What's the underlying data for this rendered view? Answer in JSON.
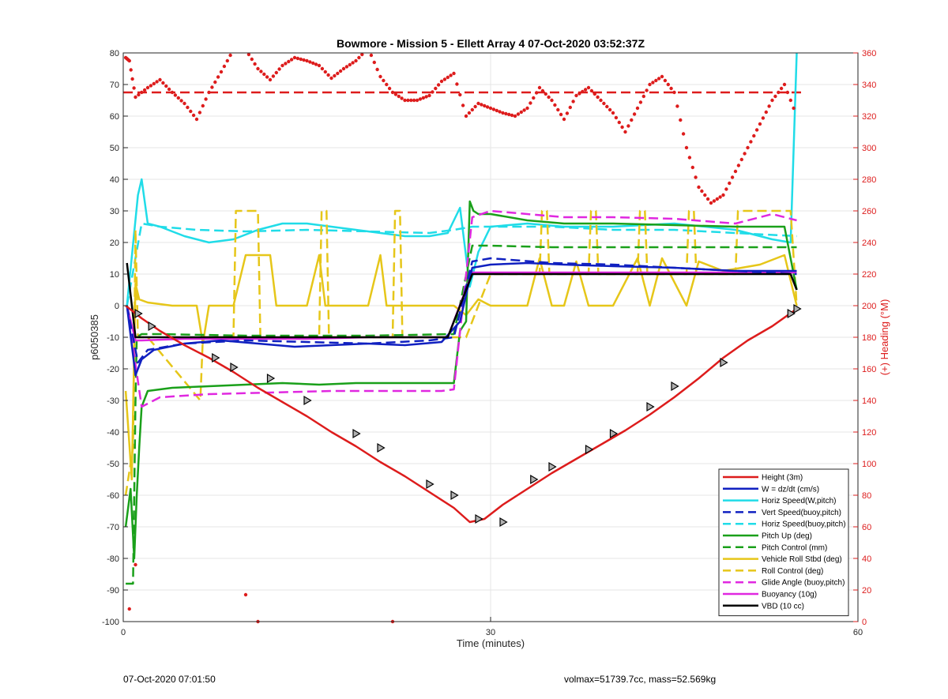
{
  "chart_data": {
    "type": "line",
    "title": "Bowmore - Mission 5 - Ellett Array 4 07-Oct-2020 03:52:37Z",
    "xlabel": "Time (minutes)",
    "ylabel_left": "p6050385",
    "ylabel_right": "(+) Heading (°M)",
    "xlim": [
      0,
      60
    ],
    "ylim_left": [
      -100,
      80
    ],
    "ylim_right": [
      0,
      360
    ],
    "x_ticks": [
      0,
      30,
      60
    ],
    "y_ticks_left": [
      80,
      70,
      60,
      50,
      40,
      30,
      20,
      10,
      0,
      -10,
      -20,
      -30,
      -40,
      -50,
      -60,
      -70,
      -80,
      -90,
      -100
    ],
    "y_ticks_right": [
      360,
      340,
      320,
      300,
      280,
      260,
      240,
      220,
      200,
      180,
      160,
      140,
      120,
      100,
      80,
      60,
      40,
      20,
      0
    ],
    "grid": true,
    "legend_position": "bottom-right",
    "series": [
      {
        "name": "Height (3m)",
        "color": "#dd1c1c",
        "style": "solid",
        "axis": "left",
        "x": [
          0.2,
          1.5,
          3,
          5,
          7,
          9,
          11,
          13,
          15,
          17,
          19,
          21,
          23,
          25,
          27,
          28.3,
          29.5,
          31,
          33,
          35,
          37,
          39,
          41,
          43,
          45,
          47,
          49,
          51,
          53,
          55
        ],
        "y": [
          0,
          -4,
          -8,
          -12.5,
          -16.5,
          -21,
          -26,
          -30.5,
          -35,
          -40,
          -44.5,
          -49.5,
          -54,
          -59,
          -64,
          -68.5,
          -67.5,
          -63,
          -58,
          -53,
          -48.5,
          -44,
          -39.5,
          -34.5,
          -29,
          -23,
          -16.5,
          -11,
          -6.5,
          -1
        ]
      },
      {
        "name": "W = dz/dt (cm/s)",
        "color": "#1020c0",
        "style": "solid",
        "axis": "left",
        "x": [
          0.3,
          1.0,
          1.5,
          2.5,
          5,
          8,
          11,
          14,
          17,
          20,
          23,
          26,
          27.5,
          28.5,
          30,
          33,
          36,
          40,
          45,
          50,
          55
        ],
        "y": [
          0,
          -22,
          -17,
          -14,
          -12,
          -11,
          -12,
          -13,
          -12.5,
          -12,
          -12.5,
          -11.5,
          -5,
          12,
          13,
          13.5,
          13,
          12.5,
          12,
          11,
          11
        ]
      },
      {
        "name": "Horiz Speed(W,pitch)",
        "color": "#20dce8",
        "style": "solid",
        "axis": "left",
        "x": [
          0.3,
          1.2,
          1.5,
          2,
          3,
          5,
          7,
          9,
          11,
          13,
          15,
          17,
          19,
          21,
          23,
          25,
          26.5,
          27.5,
          28.3,
          29,
          30,
          33,
          36,
          40,
          45,
          50,
          53,
          54.5,
          55
        ],
        "y": [
          0,
          35,
          40,
          26,
          25,
          22,
          20,
          21,
          24,
          26,
          26,
          25,
          24,
          23,
          22,
          22,
          23,
          31,
          6,
          17,
          25,
          26,
          25,
          25,
          26,
          24,
          21,
          20,
          80
        ]
      },
      {
        "name": "Vert Speed(buoy,pitch)",
        "color": "#1020c0",
        "style": "dashed",
        "axis": "left",
        "x": [
          0.3,
          1.2,
          2,
          5,
          10,
          15,
          20,
          25,
          27,
          28.5,
          30,
          35,
          40,
          45,
          50,
          55
        ],
        "y": [
          0,
          -18,
          -14,
          -12,
          -11,
          -11.5,
          -12,
          -11,
          -10,
          14,
          15,
          13.5,
          13,
          12,
          11,
          10
        ]
      },
      {
        "name": "Horiz Speed(buoy,pitch)",
        "color": "#20dce8",
        "style": "dashed",
        "axis": "left",
        "x": [
          0.3,
          1.5,
          3,
          6,
          10,
          15,
          20,
          25,
          27,
          28.5,
          30,
          35,
          40,
          45,
          50,
          55
        ],
        "y": [
          0,
          26,
          25,
          24,
          23.5,
          24,
          23.5,
          23,
          24,
          25,
          25,
          25,
          24,
          24,
          23,
          22
        ]
      },
      {
        "name": "Pitch Up (deg)",
        "color": "#1aa01a",
        "style": "solid",
        "axis": "left",
        "x": [
          0.2,
          0.6,
          0.9,
          1.1,
          1.3,
          1.5,
          2,
          4,
          7,
          10,
          13,
          16,
          19,
          22,
          25,
          27,
          27.5,
          28,
          28.3,
          28.6,
          29,
          30,
          33,
          36,
          40,
          45,
          50,
          54,
          55
        ],
        "y": [
          -70,
          -58,
          -80,
          -60,
          -45,
          -32,
          -27,
          -26,
          -25.5,
          -25,
          -24.5,
          -25,
          -24.5,
          -24.5,
          -24.5,
          -24.5,
          -8,
          -5,
          33,
          30,
          29,
          29,
          27,
          26,
          26,
          25.5,
          25,
          25,
          5
        ]
      },
      {
        "name": "Pitch Control (mm)",
        "color": "#1aa01a",
        "style": "dashed",
        "axis": "left",
        "x": [
          0.2,
          0.8,
          1.0,
          1.1,
          1.5,
          3,
          10,
          20,
          27,
          28.5,
          30,
          35,
          40,
          45,
          50,
          55
        ],
        "y": [
          -88,
          -88,
          -30,
          -10,
          -9,
          -9,
          -9.5,
          -9.5,
          -9,
          19,
          19,
          18.5,
          18.5,
          18.5,
          18.5,
          18.5
        ]
      },
      {
        "name": "Vehicle Roll Stbd (deg)",
        "color": "#e6c619",
        "style": "solid",
        "axis": "left",
        "x": [
          0.2,
          0.7,
          1.0,
          1.3,
          2,
          4,
          6,
          6.5,
          7,
          9,
          10,
          11,
          12,
          12.5,
          15,
          16,
          16.5,
          20,
          21,
          21.5,
          25,
          27,
          28,
          29,
          30,
          33,
          34,
          35,
          36,
          37,
          38,
          40,
          42,
          43,
          44,
          46,
          47,
          49,
          52,
          54,
          55
        ],
        "y": [
          -27,
          -55,
          7,
          2,
          1,
          0,
          0,
          -12,
          0,
          0,
          16,
          16,
          16,
          0,
          0,
          16,
          0,
          0,
          16,
          0,
          0,
          0,
          -3,
          2,
          0,
          0,
          15,
          0,
          0,
          14,
          0,
          0,
          15,
          0,
          15,
          0,
          14,
          11,
          13,
          16,
          0
        ]
      },
      {
        "name": "Roll Control (deg)",
        "color": "#e6c619",
        "style": "dashed",
        "axis": "left",
        "x": [
          0.2,
          0.8,
          1.0,
          1.2,
          2,
          6.3,
          6.5,
          7,
          9,
          9.2,
          11,
          11.2,
          16,
          16.2,
          16.6,
          16.8,
          22,
          22.2,
          22.6,
          22.8,
          28,
          30,
          34,
          34.2,
          34.6,
          34.8,
          38,
          38.2,
          38.6,
          38.8,
          42,
          42.2,
          42.6,
          42.8,
          46,
          46.2,
          46.6,
          46.8,
          50,
          50.2,
          54.5,
          55
        ],
        "y": [
          -60,
          -45,
          24,
          -10,
          -10,
          -30,
          -10,
          -10,
          -10,
          30,
          30,
          -10,
          -10,
          30,
          30,
          -10,
          -10,
          30,
          30,
          -10,
          -10,
          10,
          10,
          30,
          30,
          10,
          10,
          30,
          30,
          10,
          10,
          30,
          30,
          10,
          10,
          30,
          30,
          10,
          10,
          30,
          30,
          0
        ]
      },
      {
        "name": "Glide Angle (buoy,pitch)",
        "color": "#e028e0",
        "style": "dashed",
        "axis": "left",
        "x": [
          0.3,
          1.5,
          3,
          7,
          12,
          17,
          22,
          26,
          27,
          28.5,
          30,
          33,
          36,
          40,
          45,
          50,
          53,
          55
        ],
        "y": [
          0,
          -32,
          -29,
          -28,
          -27.5,
          -27,
          -27,
          -27,
          -26.5,
          28,
          30,
          29,
          28,
          28,
          27.5,
          26,
          29,
          27
        ]
      },
      {
        "name": "Buoyancy (10g)",
        "color": "#e028e0",
        "style": "solid",
        "axis": "left",
        "x": [
          0.3,
          1.0,
          1.5,
          5,
          10,
          15,
          20,
          26.5,
          28.5,
          30,
          35,
          40,
          45,
          50,
          55
        ],
        "y": [
          0,
          -11,
          -11,
          -10.5,
          -10.5,
          -10.5,
          -10,
          -10,
          10.5,
          10.5,
          10.5,
          10.5,
          10.5,
          10.5,
          10.5
        ]
      },
      {
        "name": "VBD (10 cc)",
        "color": "#000000",
        "style": "solid",
        "axis": "left",
        "x": [
          0.3,
          1.0,
          1.5,
          10,
          20,
          26.5,
          28.5,
          30,
          40,
          50,
          54.5,
          55
        ],
        "y": [
          13.5,
          -10,
          -10,
          -10,
          -10,
          -10,
          10,
          10,
          10,
          10,
          10,
          5
        ]
      },
      {
        "name": "Heading",
        "color": "#dd1c1c",
        "style": "dotted",
        "axis": "right",
        "x": [
          0.2,
          0.5,
          1.0,
          2,
          3,
          4,
          5,
          6,
          7,
          8,
          9,
          10,
          11,
          12,
          13,
          14,
          15,
          16,
          17,
          18,
          19,
          20,
          21,
          22,
          23,
          24,
          25,
          26,
          27,
          28,
          29,
          30,
          31,
          32,
          33,
          34,
          35,
          36,
          37,
          38,
          39,
          40,
          41,
          42,
          43,
          44,
          45,
          46,
          47,
          48,
          49,
          50,
          51,
          52,
          53,
          54,
          55
        ],
        "y": [
          357,
          355,
          332,
          338,
          343,
          335,
          328,
          318,
          335,
          348,
          362,
          362,
          350,
          343,
          352,
          357,
          355,
          352,
          344,
          350,
          355,
          363,
          345,
          335,
          330,
          330,
          333,
          342,
          347,
          320,
          328,
          325,
          322,
          320,
          325,
          338,
          330,
          318,
          333,
          338,
          330,
          322,
          310,
          325,
          340,
          345,
          335,
          300,
          275,
          265,
          270,
          285,
          300,
          315,
          330,
          340,
          320
        ]
      }
    ],
    "heading_reference": {
      "value": 335,
      "color": "#dd1c1c",
      "style": "dashed",
      "axis": "right"
    },
    "markers": {
      "shape": "triangle",
      "series": "Height (3m)",
      "x": [
        1.2,
        2.3,
        7.5,
        9,
        12,
        15,
        19,
        21,
        25,
        27,
        29,
        31,
        33.5,
        35,
        38,
        40,
        43,
        45,
        49,
        54.5,
        55
      ],
      "y": [
        -2.5,
        -6.5,
        -16.5,
        -19.5,
        -23,
        -30,
        -40.5,
        -45,
        -56.5,
        -60,
        -67.5,
        -68.5,
        -55,
        -51,
        -45.5,
        -40.5,
        -32,
        -25.5,
        -18,
        -2.5,
        -1
      ]
    },
    "footer": {
      "left": "07-Oct-2020 07:01:50",
      "right": "volmax=51739.7cc, mass=52.569kg"
    }
  }
}
